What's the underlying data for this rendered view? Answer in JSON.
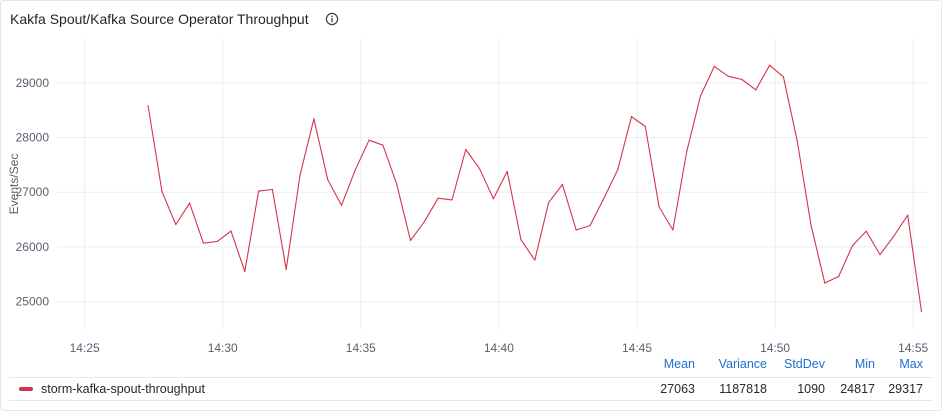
{
  "panel": {
    "title": "Kakfa Spout/Kafka Source Operator Throughput"
  },
  "colors": {
    "series": "#d6334a",
    "grid": "#ebedf0",
    "tick_text": "#5a6270",
    "stat_header": "#1f6fd1"
  },
  "legend": {
    "headers": {
      "mean": "Mean",
      "variance": "Variance",
      "stddev": "StdDev",
      "min": "Min",
      "max": "Max"
    },
    "row": {
      "name": "storm-kafka-spout-throughput",
      "mean": "27063",
      "variance": "1187818",
      "stddev": "1090",
      "min": "24817",
      "max": "29317"
    }
  },
  "chart_data": {
    "type": "line",
    "ylabel": "Events/Sec",
    "xlabel": "",
    "x_ticks": [
      "14:25",
      "14:30",
      "14:35",
      "14:40",
      "14:45",
      "14:50",
      "14:55"
    ],
    "x_range": [
      "14:24",
      "14:55.5"
    ],
    "ylim": [
      24500,
      29800
    ],
    "y_ticks": [
      25000,
      26000,
      27000,
      28000,
      29000
    ],
    "grid": true,
    "legend_position": "bottom",
    "series": [
      {
        "name": "storm-kafka-spout-throughput",
        "x": [
          "14:27.3",
          "14:27.8",
          "14:28.3",
          "14:28.8",
          "14:29.3",
          "14:29.8",
          "14:30.3",
          "14:30.8",
          "14:31.3",
          "14:31.8",
          "14:32.3",
          "14:32.8",
          "14:33.3",
          "14:33.8",
          "14:34.3",
          "14:34.8",
          "14:35.3",
          "14:35.8",
          "14:36.3",
          "14:36.8",
          "14:37.3",
          "14:37.8",
          "14:38.3",
          "14:38.8",
          "14:39.3",
          "14:39.8",
          "14:40.3",
          "14:40.8",
          "14:41.3",
          "14:41.8",
          "14:42.3",
          "14:42.8",
          "14:43.3",
          "14:43.8",
          "14:44.3",
          "14:44.8",
          "14:45.3",
          "14:45.8",
          "14:46.3",
          "14:46.8",
          "14:47.3",
          "14:47.8",
          "14:48.3",
          "14:48.8",
          "14:49.3",
          "14:49.8",
          "14:50.3",
          "14:50.8",
          "14:51.3",
          "14:51.8",
          "14:52.3",
          "14:52.8",
          "14:53.3",
          "14:53.8",
          "14:54.3",
          "14:54.8",
          "14:55.3"
        ],
        "values": [
          28580,
          27010,
          26410,
          26800,
          26070,
          26100,
          26290,
          25550,
          27020,
          27050,
          25590,
          27310,
          28340,
          27230,
          26760,
          27410,
          27950,
          27860,
          27150,
          26120,
          26460,
          26890,
          26860,
          27780,
          27430,
          26880,
          27380,
          26130,
          25760,
          26810,
          27140,
          26310,
          26390,
          26890,
          27410,
          28380,
          28200,
          26730,
          26310,
          27740,
          28760,
          29300,
          29120,
          29060,
          28870,
          29320,
          29110,
          27940,
          26400,
          25340,
          25460,
          26020,
          26290,
          25860,
          26200,
          26580,
          24817
        ]
      }
    ]
  }
}
